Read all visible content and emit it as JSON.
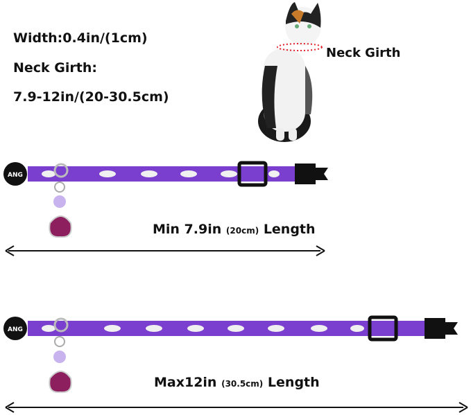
{
  "specs": {
    "width": "Width:0.4in/(1cm)",
    "girth_label": "Neck Girth:",
    "girth_range": "7.9-12in/(20-30.5cm)"
  },
  "cat_label": "Neck Girth",
  "logo": "ANG",
  "min": {
    "main": "Min 7.9in",
    "metric": "(20cm)",
    "suffix": "Length"
  },
  "max": {
    "main": "Max12in",
    "metric": "(30.5cm)",
    "suffix": "Length"
  },
  "colors": {
    "collar": "#7b3fd0",
    "buckle": "#111111",
    "paw": "#8e1f5e",
    "bell": "#c9b3ef",
    "girth_line": "#e0202a"
  }
}
